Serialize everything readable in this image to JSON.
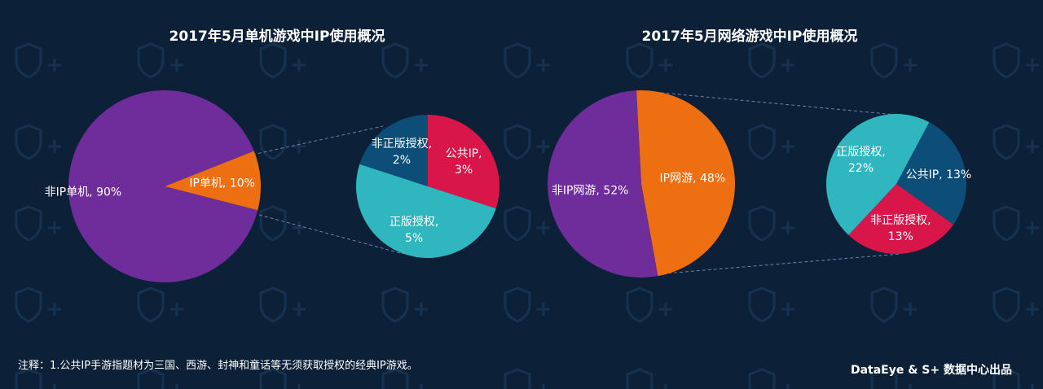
{
  "chart_data": [
    {
      "type": "pie",
      "title": "2017年5月单机游戏中IP使用概况",
      "slices": [
        {
          "label": "非IP单机, 90%",
          "value": 90,
          "color": "#6f2d9b"
        },
        {
          "label": "IP单机, 10%",
          "value": 10,
          "color": "#ee6f12"
        }
      ],
      "breakdown": {
        "of": "IP单机",
        "slices": [
          {
            "label": "公共IP,",
            "label2": "3%",
            "value": 3,
            "color": "#d8164a"
          },
          {
            "label": "正版授权,",
            "label2": "5%",
            "value": 5,
            "color": "#2fb6bf"
          },
          {
            "label": "非正版授权,",
            "label2": "2%",
            "value": 2,
            "color": "#0d4e78"
          }
        ]
      }
    },
    {
      "type": "pie",
      "title": "2017年5月网络游戏中IP使用概况",
      "slices": [
        {
          "label": "IP网游, 48%",
          "value": 48,
          "color": "#ee6f12"
        },
        {
          "label": "非IP网游, 52%",
          "value": 52,
          "color": "#6f2d9b"
        }
      ],
      "breakdown": {
        "of": "IP网游",
        "slices": [
          {
            "label": "公共IP, 13%",
            "label2": "",
            "value": 13,
            "color": "#0d4e78"
          },
          {
            "label": "非正版授权,",
            "label2": "13%",
            "value": 13,
            "color": "#d8164a"
          },
          {
            "label": "正版授权,",
            "label2": "22%",
            "value": 22,
            "color": "#2fb6bf"
          }
        ]
      }
    }
  ],
  "footer": {
    "note": "注释：1.公共IP手游指题材为三国、西游、封神和童话等无须获取授权的经典IP游戏。",
    "credit": "DataEye & S+ 数据中心出品"
  },
  "watermark": {
    "text": "S+",
    "icon": "shield-s-icon",
    "color": "#15304c"
  }
}
